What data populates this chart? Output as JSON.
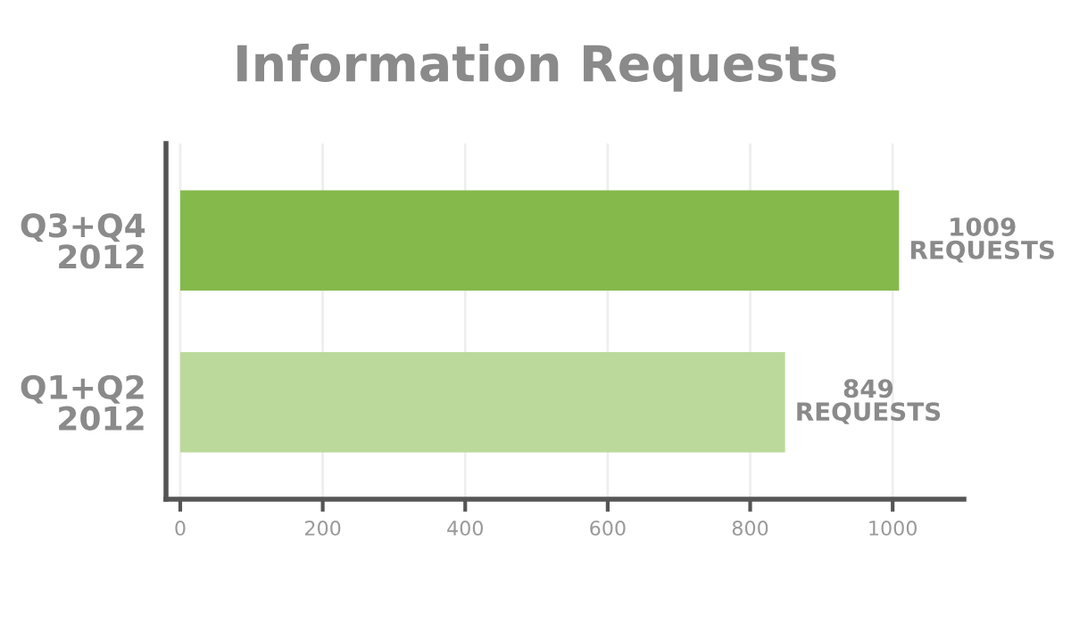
{
  "chart_data": {
    "type": "bar",
    "orientation": "horizontal",
    "title": "Information Requests",
    "categories": [
      "Q3+Q4\n2012",
      "Q1+Q2\n2012"
    ],
    "values": [
      1009,
      849
    ],
    "colors": [
      "#86b94c",
      "#bbd99b"
    ],
    "value_labels": [
      "1009\nREQUESTS",
      "849\nREQUESTS"
    ],
    "xlim": [
      -20,
      1100
    ],
    "xticks": [
      0,
      200,
      400,
      600,
      800,
      1000
    ],
    "grid": "x"
  }
}
